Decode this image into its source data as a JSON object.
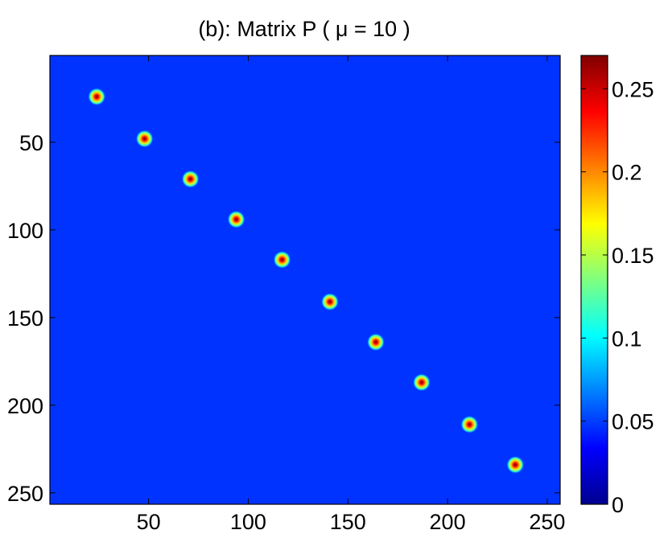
{
  "chart_data": {
    "type": "heatmap",
    "title": "(b): Matrix P ( μ = 10 )",
    "xlabel": "",
    "ylabel": "",
    "xlim": [
      0.5,
      256.5
    ],
    "ylim": [
      0.5,
      256.5
    ],
    "y_reversed": true,
    "x_ticks": [
      50,
      100,
      150,
      200,
      250
    ],
    "x_tick_labels": [
      "50",
      "100",
      "150",
      "200",
      "250"
    ],
    "y_ticks": [
      50,
      100,
      150,
      200,
      250
    ],
    "y_tick_labels": [
      "50",
      "100",
      "150",
      "200",
      "250"
    ],
    "background_value": 0,
    "spots": [
      {
        "x": 24,
        "y": 24,
        "peak": 0.27
      },
      {
        "x": 48,
        "y": 48,
        "peak": 0.27
      },
      {
        "x": 71,
        "y": 71,
        "peak": 0.27
      },
      {
        "x": 94,
        "y": 94,
        "peak": 0.27
      },
      {
        "x": 117,
        "y": 117,
        "peak": 0.27
      },
      {
        "x": 141,
        "y": 141,
        "peak": 0.27
      },
      {
        "x": 164,
        "y": 164,
        "peak": 0.27
      },
      {
        "x": 187,
        "y": 187,
        "peak": 0.27
      },
      {
        "x": 211,
        "y": 211,
        "peak": 0.27
      },
      {
        "x": 234,
        "y": 234,
        "peak": 0.27
      }
    ],
    "colorbar": {
      "colormap": "jet",
      "range": [
        0,
        0.27
      ],
      "ticks": [
        0,
        0.05,
        0.1,
        0.15,
        0.2,
        0.25
      ],
      "tick_labels": [
        "0",
        "0.05",
        "0.1",
        "0.15",
        "0.2",
        "0.25"
      ]
    },
    "grid": false,
    "legend": "none"
  }
}
